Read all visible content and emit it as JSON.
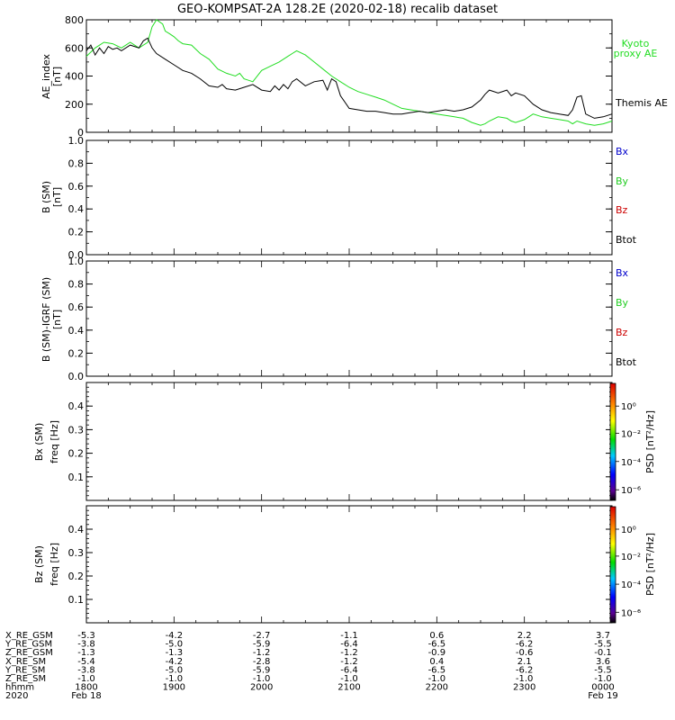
{
  "title": "GEO-KOMPSAT-2A 128.2E (2020-02-18) recalib dataset",
  "colors": {
    "kyoto": "#22dd22",
    "themis": "#000000",
    "bx": "#0000cc",
    "by": "#22cc22",
    "bz": "#cc0000",
    "btot": "#000000"
  },
  "chart_data": [
    {
      "id": "ae",
      "type": "line",
      "ylabel": "AE_index",
      "yunit": "[nT]",
      "ylim": [
        0,
        800
      ],
      "yticks": [
        "0",
        "200",
        "400",
        "600",
        "800"
      ],
      "xlim": [
        18.0,
        24.0
      ],
      "series": [
        {
          "name": "Kyoto proxy AE",
          "legend": [
            "Kyoto",
            "proxy AE"
          ],
          "color": "#22dd22",
          "x": [
            18.0,
            18.1,
            18.2,
            18.3,
            18.4,
            18.5,
            18.6,
            18.7,
            18.75,
            18.8,
            18.87,
            18.9,
            18.95,
            19.0,
            19.05,
            19.1,
            19.2,
            19.3,
            19.4,
            19.5,
            19.6,
            19.7,
            19.75,
            19.8,
            19.85,
            19.9,
            20.0,
            20.1,
            20.2,
            20.3,
            20.35,
            20.4,
            20.5,
            20.6,
            20.7,
            20.8,
            20.9,
            21.0,
            21.1,
            21.2,
            21.3,
            21.4,
            21.5,
            21.6,
            21.7,
            21.8,
            21.9,
            22.0,
            22.1,
            22.2,
            22.3,
            22.4,
            22.5,
            22.55,
            22.6,
            22.7,
            22.8,
            22.85,
            22.9,
            23.0,
            23.1,
            23.2,
            23.3,
            23.4,
            23.5,
            23.55,
            23.6,
            23.7,
            23.8,
            23.9,
            24.0
          ],
          "y": [
            540,
            600,
            640,
            630,
            600,
            640,
            600,
            640,
            750,
            800,
            770,
            720,
            700,
            680,
            650,
            630,
            620,
            560,
            520,
            450,
            420,
            400,
            420,
            380,
            370,
            360,
            440,
            470,
            500,
            540,
            560,
            580,
            550,
            500,
            450,
            400,
            360,
            320,
            290,
            270,
            250,
            230,
            200,
            170,
            160,
            150,
            140,
            130,
            120,
            110,
            100,
            70,
            50,
            60,
            80,
            110,
            100,
            80,
            70,
            90,
            130,
            110,
            100,
            90,
            80,
            60,
            80,
            60,
            50,
            60,
            80
          ]
        },
        {
          "name": "Themis AE",
          "legend": [
            "Themis AE"
          ],
          "color": "#000000",
          "x": [
            18.0,
            18.05,
            18.1,
            18.15,
            18.2,
            18.25,
            18.3,
            18.35,
            18.4,
            18.5,
            18.6,
            18.65,
            18.7,
            18.75,
            18.8,
            18.9,
            19.0,
            19.1,
            19.2,
            19.3,
            19.4,
            19.5,
            19.55,
            19.6,
            19.7,
            19.8,
            19.9,
            20.0,
            20.1,
            20.15,
            20.2,
            20.25,
            20.3,
            20.35,
            20.4,
            20.5,
            20.6,
            20.7,
            20.75,
            20.8,
            20.85,
            20.9,
            21.0,
            21.1,
            21.2,
            21.3,
            21.4,
            21.5,
            21.6,
            21.7,
            21.8,
            21.9,
            22.0,
            22.1,
            22.2,
            22.3,
            22.4,
            22.5,
            22.55,
            22.6,
            22.7,
            22.8,
            22.85,
            22.9,
            23.0,
            23.1,
            23.2,
            23.3,
            23.4,
            23.5,
            23.55,
            23.6,
            23.65,
            23.7,
            23.8,
            23.9,
            24.0
          ],
          "y": [
            580,
            620,
            550,
            600,
            560,
            610,
            590,
            600,
            580,
            620,
            600,
            650,
            670,
            600,
            560,
            520,
            480,
            440,
            420,
            380,
            330,
            320,
            340,
            310,
            300,
            320,
            340,
            300,
            290,
            330,
            300,
            340,
            310,
            360,
            380,
            330,
            360,
            370,
            300,
            380,
            360,
            260,
            170,
            160,
            150,
            150,
            140,
            130,
            130,
            140,
            150,
            140,
            150,
            160,
            150,
            160,
            180,
            230,
            270,
            300,
            280,
            300,
            260,
            280,
            260,
            200,
            160,
            140,
            130,
            120,
            160,
            250,
            260,
            130,
            100,
            110,
            130
          ]
        }
      ]
    },
    {
      "id": "bsm",
      "type": "line",
      "ylabel": "B (SM)",
      "yunit": "[nT]",
      "ylim": [
        0,
        1
      ],
      "yticks": [
        "0.0",
        "0.2",
        "0.4",
        "0.6",
        "0.8",
        "1.0"
      ],
      "series": [
        {
          "name": "Bx",
          "color": "#0000cc",
          "x": [],
          "y": []
        },
        {
          "name": "By",
          "color": "#22cc22",
          "x": [],
          "y": []
        },
        {
          "name": "Bz",
          "color": "#cc0000",
          "x": [],
          "y": []
        },
        {
          "name": "Btot",
          "color": "#000000",
          "x": [],
          "y": []
        }
      ]
    },
    {
      "id": "bigrf",
      "type": "line",
      "ylabel": "B (SM)-IGRF (SM)",
      "yunit": "[nT]",
      "ylim": [
        0,
        1
      ],
      "yticks": [
        "0.0",
        "0.2",
        "0.4",
        "0.6",
        "0.8",
        "1.0"
      ],
      "series": [
        {
          "name": "Bx",
          "color": "#0000cc",
          "x": [],
          "y": []
        },
        {
          "name": "By",
          "color": "#22cc22",
          "x": [],
          "y": []
        },
        {
          "name": "Bz",
          "color": "#cc0000",
          "x": [],
          "y": []
        },
        {
          "name": "Btot",
          "color": "#000000",
          "x": [],
          "y": []
        }
      ]
    },
    {
      "id": "bxpsd",
      "type": "heatmap",
      "ylabel": "Bx (SM)",
      "yunit": "freq [Hz]",
      "ylim": [
        0,
        0.5
      ],
      "yticks": [
        "0.1",
        "0.2",
        "0.3",
        "0.4"
      ],
      "colorbar": {
        "label": "PSD [nT²/Hz]",
        "ticks": [
          "10⁰",
          "10⁻²",
          "10⁻⁴",
          "10⁻⁶"
        ]
      }
    },
    {
      "id": "bzpsd",
      "type": "heatmap",
      "ylabel": "Bz (SM)",
      "yunit": "freq [Hz]",
      "ylim": [
        0,
        0.5
      ],
      "yticks": [
        "0.1",
        "0.2",
        "0.3",
        "0.4"
      ],
      "colorbar": {
        "label": "PSD [nT²/Hz]",
        "ticks": [
          "10⁰",
          "10⁻²",
          "10⁻⁴",
          "10⁻⁶"
        ]
      }
    }
  ],
  "ephemeris": {
    "rows": [
      {
        "label": "X_RE_GSM",
        "values": [
          "-5.3",
          "-4.2",
          "-2.7",
          "-1.1",
          "0.6",
          "2.2",
          "3.7"
        ]
      },
      {
        "label": "Y_RE_GSM",
        "values": [
          "-3.8",
          "-5.0",
          "-5.9",
          "-6.4",
          "-6.5",
          "-6.2",
          "-5.5"
        ]
      },
      {
        "label": "Z_RE_GSM",
        "values": [
          "-1.3",
          "-1.3",
          "-1.2",
          "-1.2",
          "-0.9",
          "-0.6",
          "-0.1"
        ]
      },
      {
        "label": "X_RE_SM",
        "values": [
          "-5.4",
          "-4.2",
          "-2.8",
          "-1.2",
          "0.4",
          "2.1",
          "3.6"
        ]
      },
      {
        "label": "Y_RE_SM",
        "values": [
          "-3.8",
          "-5.0",
          "-5.9",
          "-6.4",
          "-6.5",
          "-6.2",
          "-5.5"
        ]
      },
      {
        "label": "Z_RE_SM",
        "values": [
          "-1.0",
          "-1.0",
          "-1.0",
          "-1.0",
          "-1.0",
          "-1.0",
          "-1.0"
        ]
      },
      {
        "label": "hhmm",
        "values": [
          "1800",
          "1900",
          "2000",
          "2100",
          "2200",
          "2300",
          "0000"
        ]
      }
    ],
    "date_row": {
      "label": "2020",
      "start": "Feb 18",
      "end": "Feb 19"
    }
  }
}
